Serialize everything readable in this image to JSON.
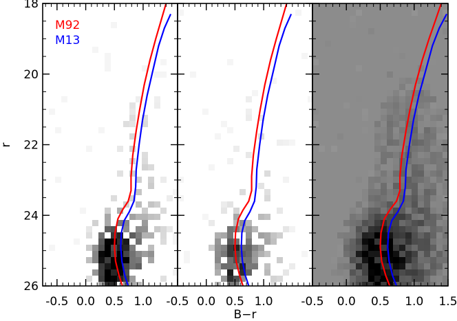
{
  "chart_data": {
    "type": "heatmap",
    "title": "",
    "xlabel": "B−r",
    "ylabel": "r",
    "y_inverted": true,
    "ylim": [
      26,
      18
    ],
    "y_ticks": [
      "18",
      "20",
      "22",
      "24",
      "26"
    ],
    "y_tick_values": [
      18,
      20,
      22,
      24,
      26
    ],
    "panels": [
      {
        "name": "left",
        "background": "white",
        "xlim": [
          -0.75,
          1.6
        ],
        "x_ticks": [
          "-0.5",
          "0.0",
          "0.5",
          "1.0"
        ],
        "x_tick_values": [
          -0.5,
          0.0,
          0.5,
          1.0
        ],
        "legend": true
      },
      {
        "name": "middle",
        "background": "white",
        "xlim": [
          -0.5,
          1.85
        ],
        "x_ticks": [
          "-0.5",
          "0.0",
          "0.5",
          "1.0"
        ],
        "x_tick_values": [
          -0.5,
          0.0,
          0.5,
          1.0
        ],
        "legend": false
      },
      {
        "name": "right",
        "background": "gray",
        "xlim": [
          -0.5,
          1.5
        ],
        "x_ticks": [
          "-0.5",
          "0.0",
          "0.5",
          "1.0",
          "1.5"
        ],
        "x_tick_values": [
          -0.5,
          0.0,
          0.5,
          1.0,
          1.5
        ],
        "legend": false
      }
    ],
    "legend_position": "top-left",
    "series": [
      {
        "name": "M92",
        "color": "#ff0000",
        "points": [
          [
            0.64,
            26.0
          ],
          [
            0.58,
            25.7
          ],
          [
            0.52,
            25.3
          ],
          [
            0.5,
            24.9
          ],
          [
            0.51,
            24.5
          ],
          [
            0.56,
            24.1
          ],
          [
            0.64,
            23.85
          ],
          [
            0.74,
            23.6
          ],
          [
            0.79,
            23.3
          ],
          [
            0.79,
            22.9
          ],
          [
            0.82,
            22.3
          ],
          [
            0.88,
            21.6
          ],
          [
            0.94,
            21.0
          ],
          [
            1.02,
            20.3
          ],
          [
            1.12,
            19.6
          ],
          [
            1.22,
            19.0
          ],
          [
            1.31,
            18.5
          ],
          [
            1.4,
            18.0
          ]
        ]
      },
      {
        "name": "M13",
        "color": "#0000ff",
        "points": [
          [
            0.74,
            26.0
          ],
          [
            0.68,
            25.7
          ],
          [
            0.63,
            25.3
          ],
          [
            0.61,
            24.9
          ],
          [
            0.62,
            24.5
          ],
          [
            0.67,
            24.15
          ],
          [
            0.76,
            23.9
          ],
          [
            0.84,
            23.6
          ],
          [
            0.87,
            23.2
          ],
          [
            0.88,
            22.7
          ],
          [
            0.93,
            22.0
          ],
          [
            0.99,
            21.3
          ],
          [
            1.07,
            20.6
          ],
          [
            1.17,
            19.9
          ],
          [
            1.27,
            19.2
          ],
          [
            1.37,
            18.7
          ],
          [
            1.48,
            18.3
          ]
        ]
      }
    ],
    "hess_density": {
      "note_cells": "dark blobs: value 0-1 = darkness",
      "blobs": [
        {
          "cx": 0.45,
          "cy": 25.3,
          "sx": 0.22,
          "sy": 0.7,
          "amp": 1.0
        },
        {
          "cx": 0.85,
          "cy": 25.1,
          "sx": 0.35,
          "sy": 0.9,
          "amp": 0.45
        },
        {
          "cx": 0.95,
          "cy": 22.5,
          "sx": 0.35,
          "sy": 1.5,
          "amp": 0.18
        }
      ]
    }
  }
}
